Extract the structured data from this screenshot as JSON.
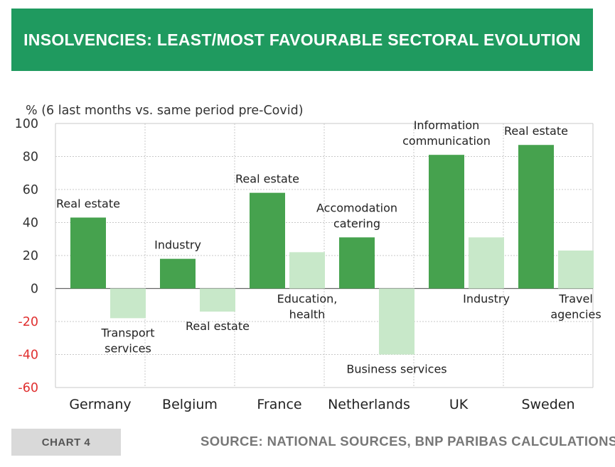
{
  "header": {
    "title": "INSOLVENCIES: LEAST/MOST FAVOURABLE SECTORAL EVOLUTION"
  },
  "footer": {
    "chart_label": "CHART 4",
    "source": "SOURCE: NATIONAL SOURCES, BNP PARIBAS CALCULATIONS"
  },
  "colors": {
    "banner": "#1f9a5f",
    "dark_bar": "#46a24e",
    "light_bar": "#c8e8c9",
    "negative_tick": "#e03030",
    "grid": "#c8c8c8"
  },
  "chart_data": {
    "type": "bar",
    "ylabel": "% (6 last months vs. same period pre-Covid)",
    "ylim": [
      -60,
      100
    ],
    "yticks": [
      100,
      80,
      60,
      40,
      20,
      0,
      -20,
      -40,
      -60
    ],
    "grid": true,
    "categories": [
      "Germany",
      "Belgium",
      "France",
      "Netherlands",
      "UK",
      "Sweden"
    ],
    "series": [
      {
        "key": "most",
        "values": [
          43,
          18,
          58,
          31,
          81,
          87
        ],
        "labels": [
          [
            "Real estate"
          ],
          [
            "Industry"
          ],
          [
            "Real estate"
          ],
          [
            "Accomodation",
            "catering"
          ],
          [
            "Information",
            "communication"
          ],
          [
            "Real estate"
          ]
        ]
      },
      {
        "key": "least",
        "values": [
          -18,
          -14,
          22,
          -40,
          31,
          23
        ],
        "labels": [
          [
            "Transport",
            "services"
          ],
          [
            "Real estate"
          ],
          [
            "Education,",
            "health"
          ],
          [
            "Business services"
          ],
          [
            "Industry"
          ],
          [
            "Travel",
            "agencies"
          ]
        ]
      }
    ]
  }
}
